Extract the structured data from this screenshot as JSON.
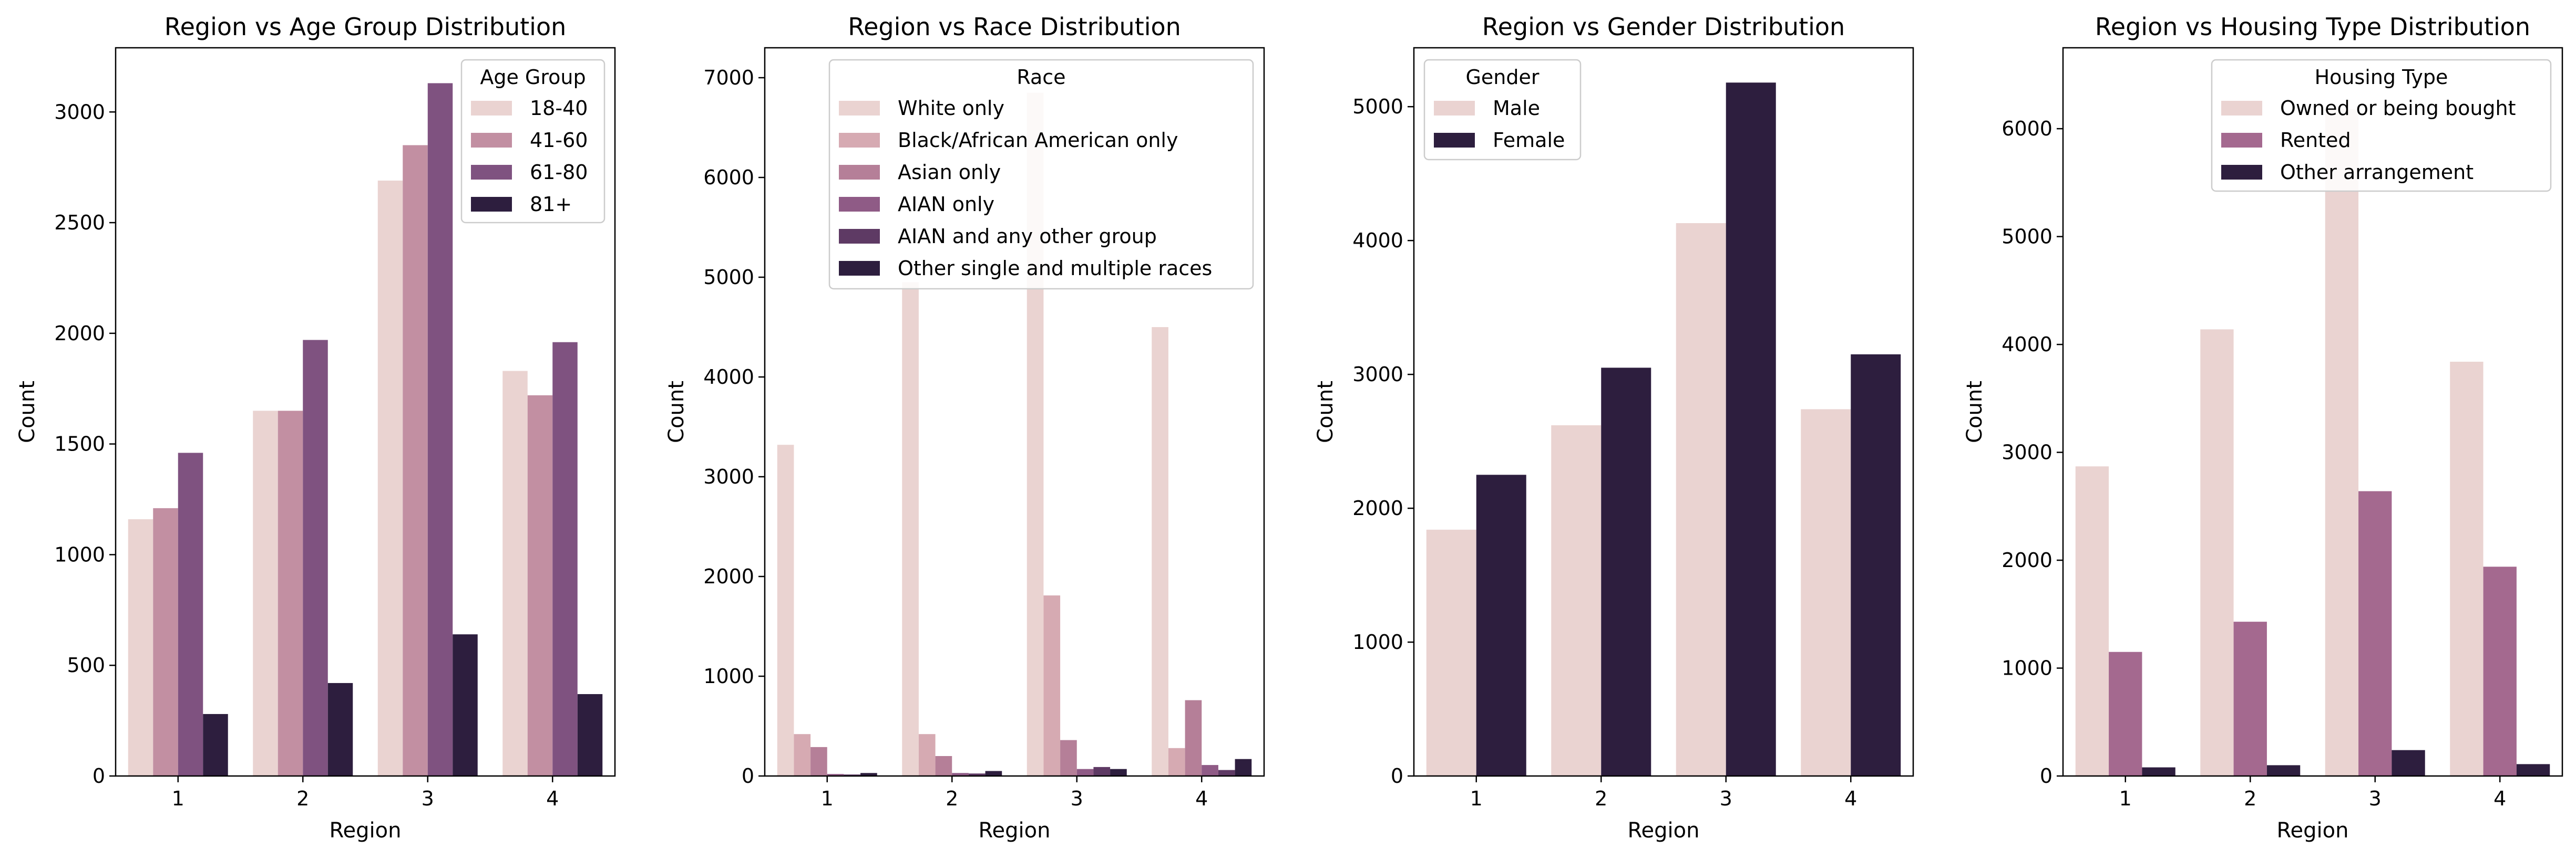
{
  "chart_data": [
    {
      "type": "bar",
      "title": "Region vs Age Group Distribution",
      "xlabel": "Region",
      "ylabel": "Count",
      "categories": [
        "1",
        "2",
        "3",
        "4"
      ],
      "ylim": [
        0,
        3290
      ],
      "yticks": [
        0,
        500,
        1000,
        1500,
        2000,
        2500,
        3000
      ],
      "legend_title": "Age Group",
      "legend_position": "top-right",
      "series": [
        {
          "name": "18-40",
          "color": "#ead3d1",
          "values": [
            1160,
            1650,
            2690,
            1830
          ]
        },
        {
          "name": "41-60",
          "color": "#c28fa2",
          "values": [
            1210,
            1650,
            2850,
            1720
          ]
        },
        {
          "name": "61-80",
          "color": "#7f5280",
          "values": [
            1460,
            1970,
            3130,
            1960
          ]
        },
        {
          "name": "81+",
          "color": "#2d1e3e",
          "values": [
            280,
            420,
            640,
            370
          ]
        }
      ]
    },
    {
      "type": "bar",
      "title": "Region vs Race Distribution",
      "xlabel": "Region",
      "ylabel": "Count",
      "categories": [
        "1",
        "2",
        "3",
        "4"
      ],
      "ylim": [
        0,
        7300
      ],
      "yticks": [
        0,
        1000,
        2000,
        3000,
        4000,
        5000,
        6000,
        7000
      ],
      "legend_title": "Race",
      "legend_position": "top",
      "series": [
        {
          "name": "White only",
          "color": "#ead3d1",
          "values": [
            3320,
            4950,
            6850,
            4500
          ]
        },
        {
          "name": "Black/African American only",
          "color": "#d6aab2",
          "values": [
            420,
            420,
            1810,
            280
          ]
        },
        {
          "name": "Asian only",
          "color": "#b57f98",
          "values": [
            290,
            200,
            360,
            760
          ]
        },
        {
          "name": "AIAN only",
          "color": "#8f5b86",
          "values": [
            20,
            30,
            70,
            110
          ]
        },
        {
          "name": "AIAN and any other group",
          "color": "#5e3a64",
          "values": [
            15,
            25,
            90,
            60
          ]
        },
        {
          "name": "Other single and multiple races",
          "color": "#2d1e3e",
          "values": [
            30,
            50,
            70,
            170
          ]
        }
      ]
    },
    {
      "type": "bar",
      "title": "Region vs Gender Distribution",
      "xlabel": "Region",
      "ylabel": "Count",
      "categories": [
        "1",
        "2",
        "3",
        "4"
      ],
      "ylim": [
        0,
        5440
      ],
      "yticks": [
        0,
        1000,
        2000,
        3000,
        4000,
        5000
      ],
      "legend_title": "Gender",
      "legend_position": "top-left",
      "series": [
        {
          "name": "Male",
          "color": "#ead3d1",
          "values": [
            1840,
            2620,
            4130,
            2740
          ]
        },
        {
          "name": "Female",
          "color": "#2d1e3e",
          "values": [
            2250,
            3050,
            5180,
            3150
          ]
        }
      ]
    },
    {
      "type": "bar",
      "title": "Region vs Housing Type Distribution",
      "xlabel": "Region",
      "ylabel": "Count",
      "categories": [
        "1",
        "2",
        "3",
        "4"
      ],
      "ylim": [
        0,
        6750
      ],
      "yticks": [
        0,
        1000,
        2000,
        3000,
        4000,
        5000,
        6000
      ],
      "legend_title": "Housing Type",
      "legend_position": "top-right",
      "series": [
        {
          "name": "Owned or being bought",
          "color": "#ead3d1",
          "values": [
            2870,
            4140,
            6180,
            3840
          ]
        },
        {
          "name": "Rented",
          "color": "#a4698f",
          "values": [
            1150,
            1430,
            2640,
            1940
          ]
        },
        {
          "name": "Other arrangement",
          "color": "#2d1e3e",
          "values": [
            80,
            100,
            240,
            110
          ]
        }
      ]
    }
  ]
}
